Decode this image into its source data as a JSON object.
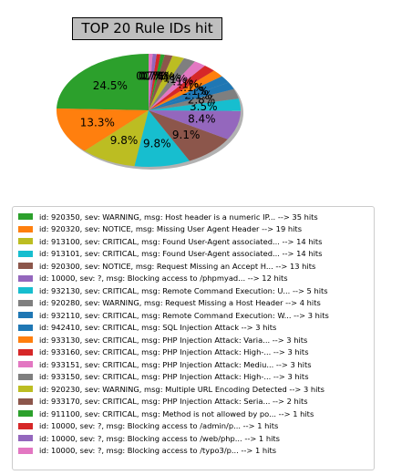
{
  "chart_data": {
    "type": "pie",
    "title": "TOP 20 Rule IDs hit",
    "shadow": true,
    "start_angle_deg": 90,
    "direction": "counterclockwise",
    "slices": [
      {
        "label": "id: 920350, sev: WARNING, msg: Host header is a numeric IP... --> 35 hits",
        "value": 35,
        "pct": "24.5%",
        "color": "#2ca02c"
      },
      {
        "label": "id: 920320, sev: NOTICE, msg: Missing User Agent Header --> 19 hits",
        "value": 19,
        "pct": "13.3%",
        "color": "#ff7f0e"
      },
      {
        "label": "id: 913100, sev: CRITICAL, msg: Found User-Agent associated... --> 14 hits",
        "value": 14,
        "pct": "9.8%",
        "color": "#bcbd22"
      },
      {
        "label": "id: 913101, sev: CRITICAL, msg: Found User-Agent associated... --> 14 hits",
        "value": 14,
        "pct": "9.8%",
        "color": "#17becf"
      },
      {
        "label": "id: 920300, sev: NOTICE, msg: Request Missing an Accept H... --> 13 hits",
        "value": 13,
        "pct": "9.1%",
        "color": "#8c564b"
      },
      {
        "label": "id: 10000, sev: ?, msg: Blocking access to /phpmyad... --> 12 hits",
        "value": 12,
        "pct": "8.4%",
        "color": "#9467bd"
      },
      {
        "label": "id: 932130, sev: CRITICAL, msg: Remote Command Execution: U... --> 5 hits",
        "value": 5,
        "pct": "3.5%",
        "color": "#17becf"
      },
      {
        "label": "id: 920280, sev: WARNING, msg: Request Missing a Host Header --> 4 hits",
        "value": 4,
        "pct": "2.8%",
        "color": "#7f7f7f"
      },
      {
        "label": "id: 932110, sev: CRITICAL, msg: Remote Command Execution: W... --> 3 hits",
        "value": 3,
        "pct": "2.1%",
        "color": "#1f77b4"
      },
      {
        "label": "id: 942410, sev: CRITICAL, msg: SQL Injection Attack --> 3 hits",
        "value": 3,
        "pct": "2.1%",
        "color": "#1f77b4"
      },
      {
        "label": "id: 933130, sev: CRITICAL, msg: PHP Injection Attack: Varia... --> 3 hits",
        "value": 3,
        "pct": "2.1%",
        "color": "#ff7f0e"
      },
      {
        "label": "id: 933160, sev: CRITICAL, msg: PHP Injection Attack: High-... --> 3 hits",
        "value": 3,
        "pct": "2.1%",
        "color": "#d62728"
      },
      {
        "label": "id: 933151, sev: CRITICAL, msg: PHP Injection Attack: Mediu... --> 3 hits",
        "value": 3,
        "pct": "2.1%",
        "color": "#e377c2"
      },
      {
        "label": "id: 933150, sev: CRITICAL, msg: PHP Injection Attack: High-... --> 3 hits",
        "value": 3,
        "pct": "2.1%",
        "color": "#7f7f7f"
      },
      {
        "label": "id: 920230, sev: WARNING, msg: Multiple URL Encoding Detected --> 3 hits",
        "value": 3,
        "pct": "2.1%",
        "color": "#bcbd22"
      },
      {
        "label": "id: 933170, sev: CRITICAL, msg: PHP Injection Attack: Seria... --> 2 hits",
        "value": 2,
        "pct": "1.4%",
        "color": "#8c564b"
      },
      {
        "label": "id: 911100, sev: CRITICAL, msg: Method is not allowed by po... --> 1 hits",
        "value": 1,
        "pct": "0.7%",
        "color": "#2ca02c"
      },
      {
        "label": "id: 10000, sev: ?, msg: Blocking access to /admin/p... --> 1 hits",
        "value": 1,
        "pct": "0.7%",
        "color": "#d62728"
      },
      {
        "label": "id: 10000, sev: ?, msg: Blocking access to /web/php... --> 1 hits",
        "value": 1,
        "pct": "0.7%",
        "color": "#9467bd"
      },
      {
        "label": "id: 10000, sev: ?, msg: Blocking access to /typo3/p... --> 1 hits",
        "value": 1,
        "pct": "0.7%",
        "color": "#e377c2"
      }
    ],
    "legend_position": "bottom"
  }
}
